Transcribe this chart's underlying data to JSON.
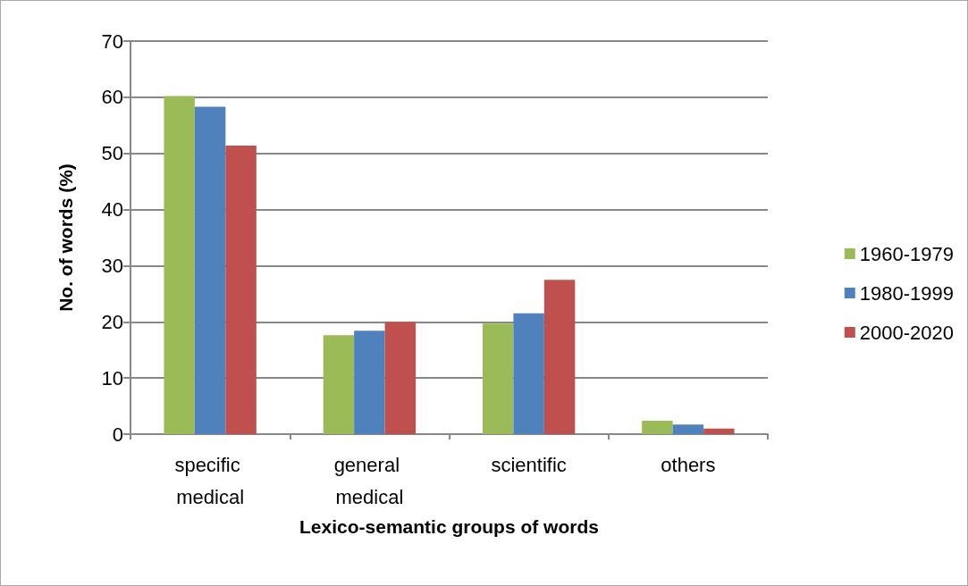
{
  "chart_data": {
    "type": "bar",
    "xlabel": "Lexico-semantic groups of words",
    "ylabel": "No. of words (%)",
    "categories": [
      "specific medical",
      "general medical",
      "scientific",
      "others"
    ],
    "series": [
      {
        "name": "1960-1979",
        "color": "#9bbb59",
        "values": [
          60.2,
          17.6,
          19.7,
          2.4
        ]
      },
      {
        "name": "1980-1999",
        "color": "#4f81bd",
        "values": [
          58.3,
          18.4,
          21.5,
          1.7
        ]
      },
      {
        "name": "2000-2020",
        "color": "#c0504d",
        "values": [
          51.4,
          20.0,
          27.5,
          1.0
        ]
      }
    ],
    "ylim": [
      0,
      70
    ],
    "yticks": [
      0,
      10,
      20,
      30,
      40,
      50,
      60,
      70
    ],
    "grid": "y",
    "legend": "right"
  }
}
